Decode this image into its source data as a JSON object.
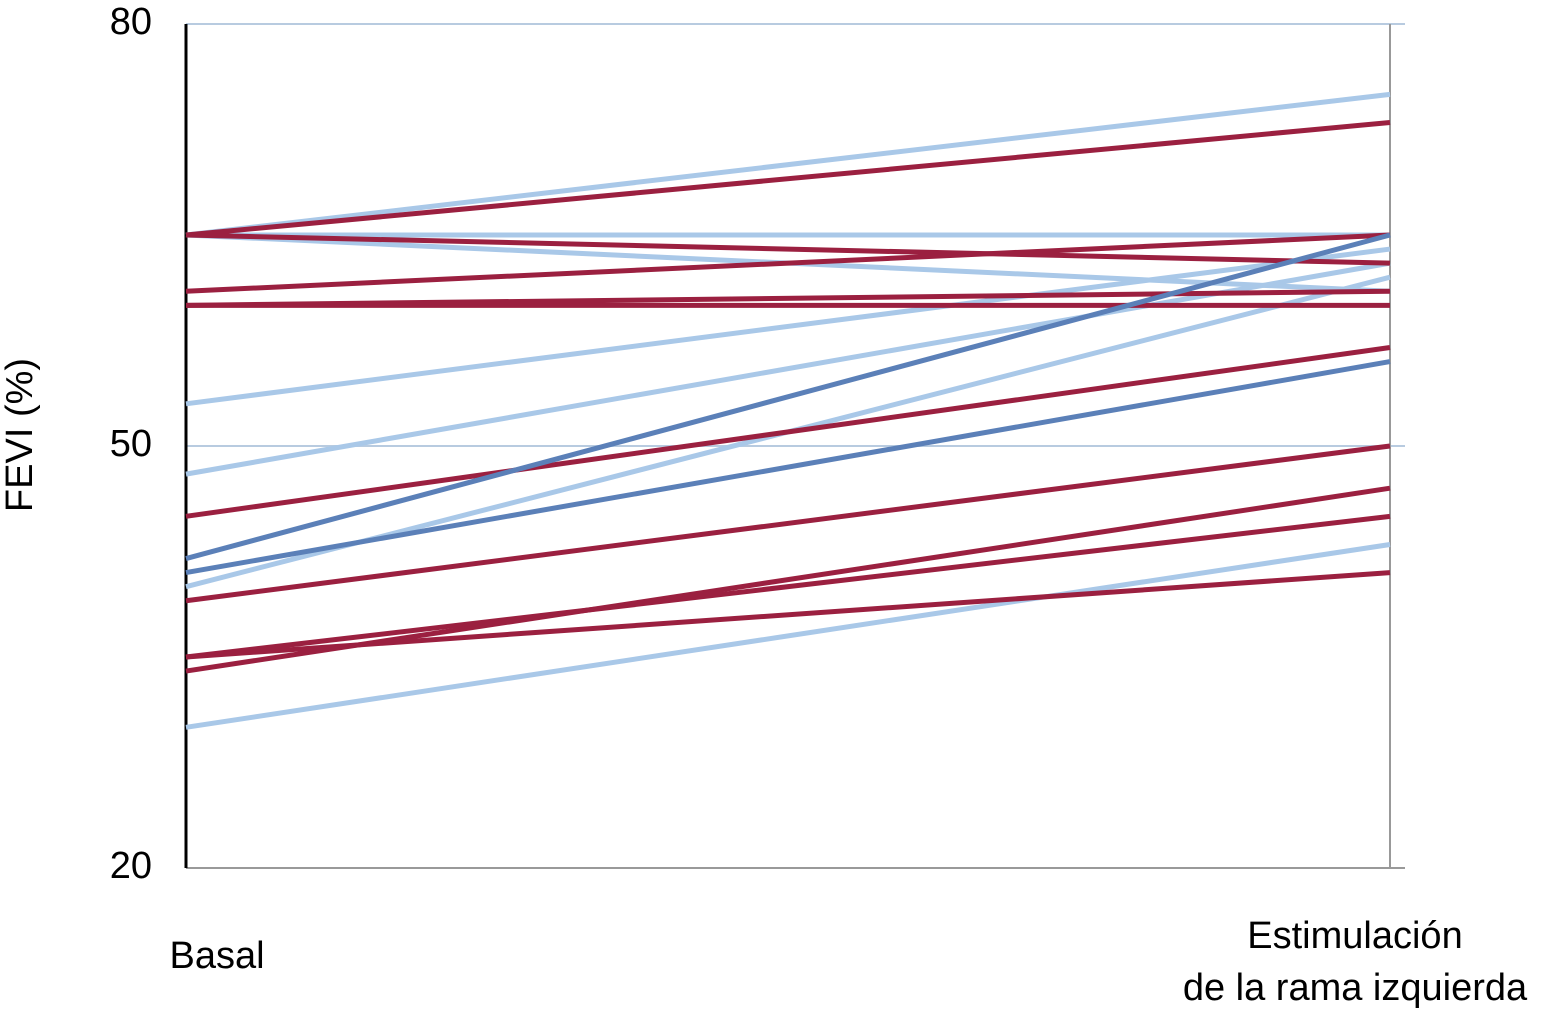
{
  "chart_data": {
    "type": "line",
    "ylabel": "FEVI (%)",
    "categories": [
      "Basal",
      "Estimulación\nde la rama izquierda"
    ],
    "ylim": [
      20,
      80
    ],
    "yticks": [
      20,
      50,
      80
    ],
    "grid": true,
    "series": [
      {
        "color": "#a9c8e8",
        "values": [
          65,
          75
        ]
      },
      {
        "color": "#a9c8e8",
        "values": [
          65,
          65
        ]
      },
      {
        "color": "#a9c8e8",
        "values": [
          65,
          61
        ]
      },
      {
        "color": "#a9c8e8",
        "values": [
          53,
          64
        ]
      },
      {
        "color": "#a9c8e8",
        "values": [
          48,
          63
        ]
      },
      {
        "color": "#a9c8e8",
        "values": [
          40,
          62
        ]
      },
      {
        "color": "#a9c8e8",
        "values": [
          30,
          43
        ]
      },
      {
        "color": "#9b2040",
        "values": [
          65,
          73
        ]
      },
      {
        "color": "#9b2040",
        "values": [
          65,
          63
        ]
      },
      {
        "color": "#9b2040",
        "values": [
          61,
          65
        ]
      },
      {
        "color": "#9b2040",
        "values": [
          60,
          60
        ]
      },
      {
        "color": "#9b2040",
        "values": [
          60,
          61
        ]
      },
      {
        "color": "#9b2040",
        "values": [
          45,
          57
        ]
      },
      {
        "color": "#5b80b8",
        "values": [
          42,
          65
        ]
      },
      {
        "color": "#5b80b8",
        "values": [
          41,
          56
        ]
      },
      {
        "color": "#9b2040",
        "values": [
          39,
          50
        ]
      },
      {
        "color": "#9b2040",
        "values": [
          35,
          41
        ]
      },
      {
        "color": "#9b2040",
        "values": [
          34,
          47
        ]
      },
      {
        "color": "#9b2040",
        "values": [
          35,
          45
        ]
      }
    ]
  }
}
